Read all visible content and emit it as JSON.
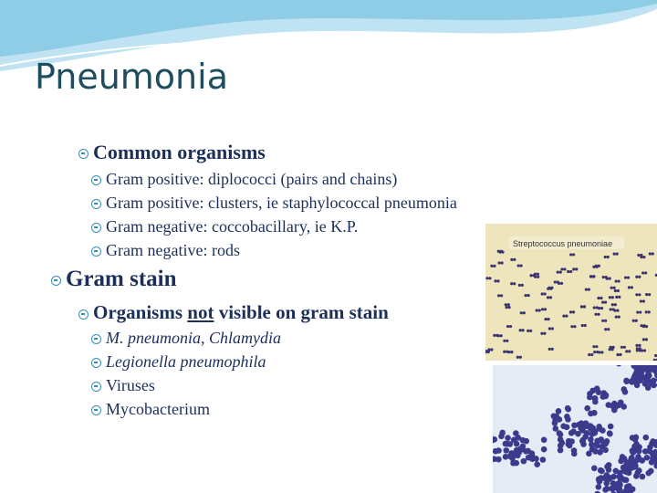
{
  "slide": {
    "title": "Pneumonia",
    "sections": [
      {
        "heading": "Common organisms",
        "items": [
          "Gram positive: diplococci (pairs and chains)",
          "Gram positive: clusters, ie staphylococcal pneumonia",
          "Gram negative: coccobacillary, ie K.P.",
          "Gram negative: rods"
        ]
      },
      {
        "heading": "Gram stain",
        "subheading": [
          "Organisms",
          "not",
          "visible on gram stain"
        ],
        "items": [
          "M. pneumonia, Chlamydia",
          "Legionella pneumophila",
          "Viruses",
          "Mycobacterium"
        ]
      }
    ],
    "image_caption": "Streptococcus pneumoniae"
  }
}
